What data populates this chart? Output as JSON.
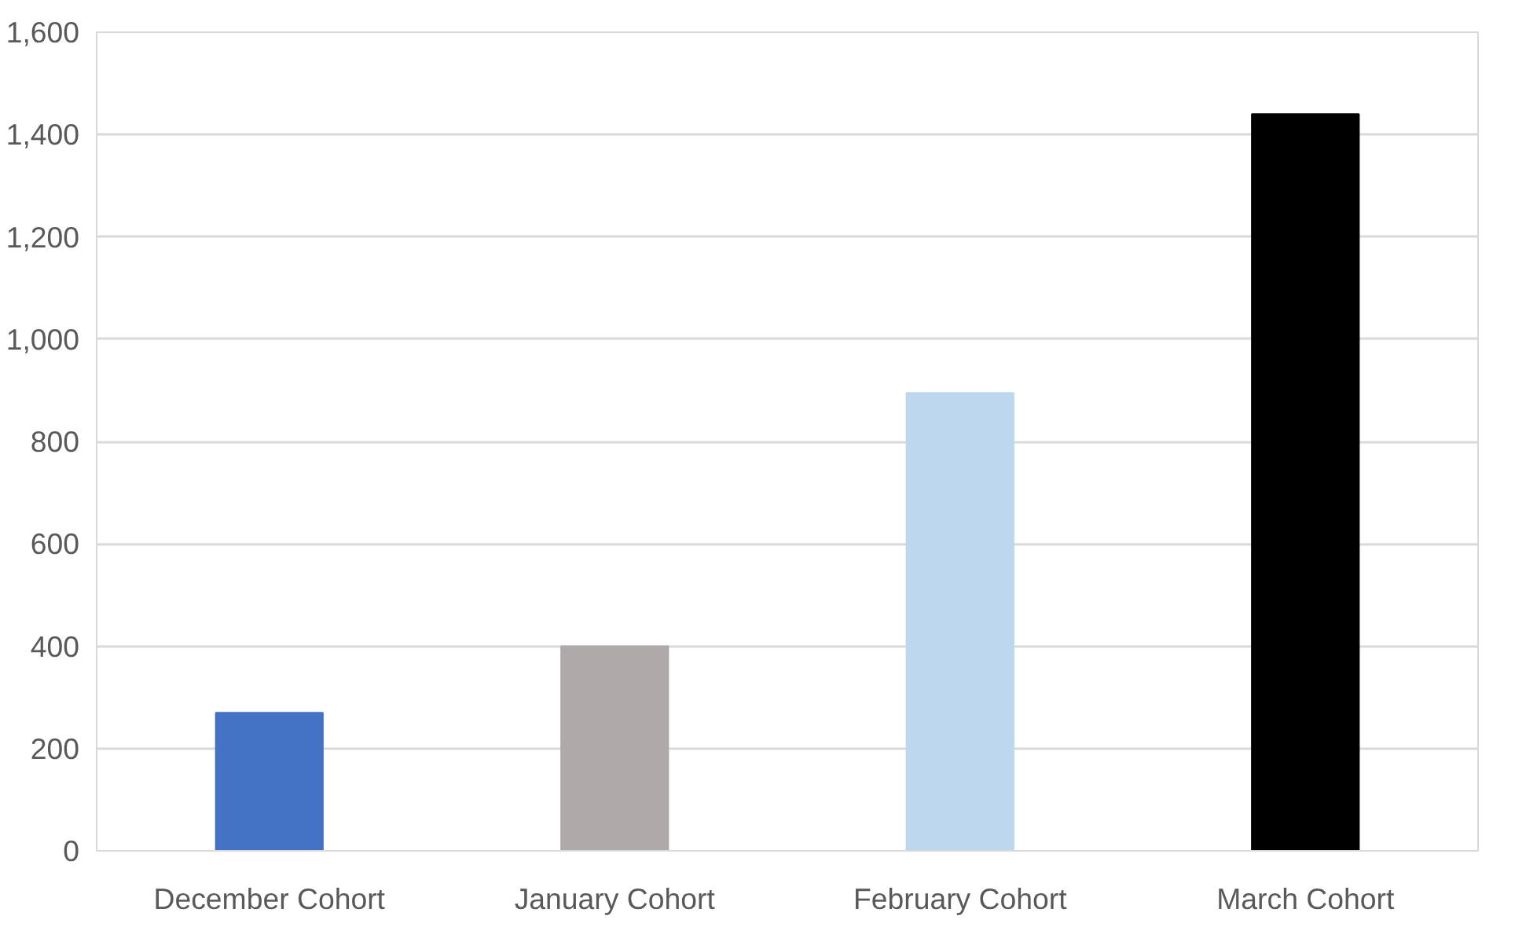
{
  "chart_data": {
    "type": "bar",
    "categories": [
      "December Cohort",
      "January Cohort",
      "February Cohort",
      "March Cohort"
    ],
    "values": [
      270,
      400,
      895,
      1440
    ],
    "colors": [
      "#4472c4",
      "#aeaaaa",
      "#bdd7ee",
      "#000000"
    ],
    "ylim": [
      0,
      1600
    ],
    "yticks": [
      {
        "value": 0,
        "label": "0"
      },
      {
        "value": 200,
        "label": "200"
      },
      {
        "value": 400,
        "label": "400"
      },
      {
        "value": 600,
        "label": "600"
      },
      {
        "value": 800,
        "label": "800"
      },
      {
        "value": 1000,
        "label": "1,000"
      },
      {
        "value": 1200,
        "label": "1,200"
      },
      {
        "value": 1400,
        "label": "1,400"
      },
      {
        "value": 1600,
        "label": "1,600"
      }
    ],
    "grid": "y"
  }
}
